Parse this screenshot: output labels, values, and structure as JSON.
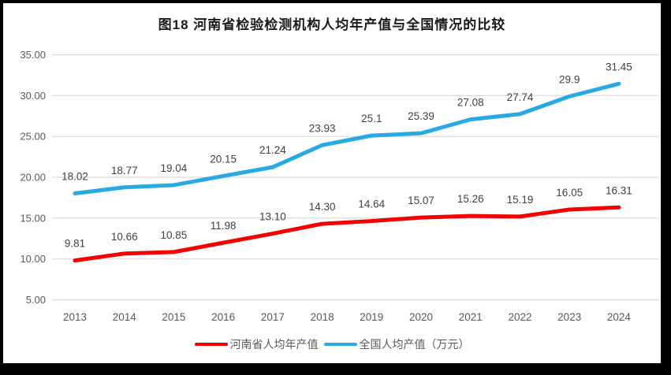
{
  "chart_data": {
    "type": "line",
    "title": "图18  河南省检验检测机构人均年产值与全国情况的比较",
    "categories": [
      "2013",
      "2014",
      "2015",
      "2016",
      "2017",
      "2018",
      "2019",
      "2020",
      "2021",
      "2022",
      "2023",
      "2024"
    ],
    "series": [
      {
        "name": "河南省人均年产值",
        "color": "#F40000",
        "values": [
          9.81,
          10.66,
          10.85,
          11.98,
          13.1,
          14.3,
          14.64,
          15.07,
          15.26,
          15.19,
          16.05,
          16.31
        ],
        "labels": [
          "9.81",
          "10.66",
          "10.85",
          "11.98",
          "13.10",
          "14.30",
          "14.64",
          "15.07",
          "15.26",
          "15.19",
          "16.05",
          "16.31"
        ]
      },
      {
        "name": "全国人均产值（万元）",
        "color": "#27A9E1",
        "values": [
          18.02,
          18.77,
          19.04,
          20.15,
          21.24,
          23.93,
          25.1,
          25.39,
          27.08,
          27.74,
          29.9,
          31.45
        ],
        "labels": [
          "18.02",
          "18.77",
          "19.04",
          "20.15",
          "21.24",
          "23.93",
          "25.1",
          "25.39",
          "27.08",
          "27.74",
          "29.9",
          "31.45"
        ]
      }
    ],
    "xlabel": "",
    "ylabel": "",
    "yticks": [
      "5.00",
      "10.00",
      "15.00",
      "20.00",
      "25.00",
      "30.00",
      "35.00"
    ],
    "ylim": [
      5,
      35
    ],
    "grid": true,
    "legend_position": "bottom",
    "colors": {
      "grid": "#D9D9D9",
      "axis_text": "#595959",
      "data_label": "#3F3F3F",
      "title": "#1A1A1A",
      "background": "#FFFFFF",
      "frame": "#000000"
    }
  }
}
